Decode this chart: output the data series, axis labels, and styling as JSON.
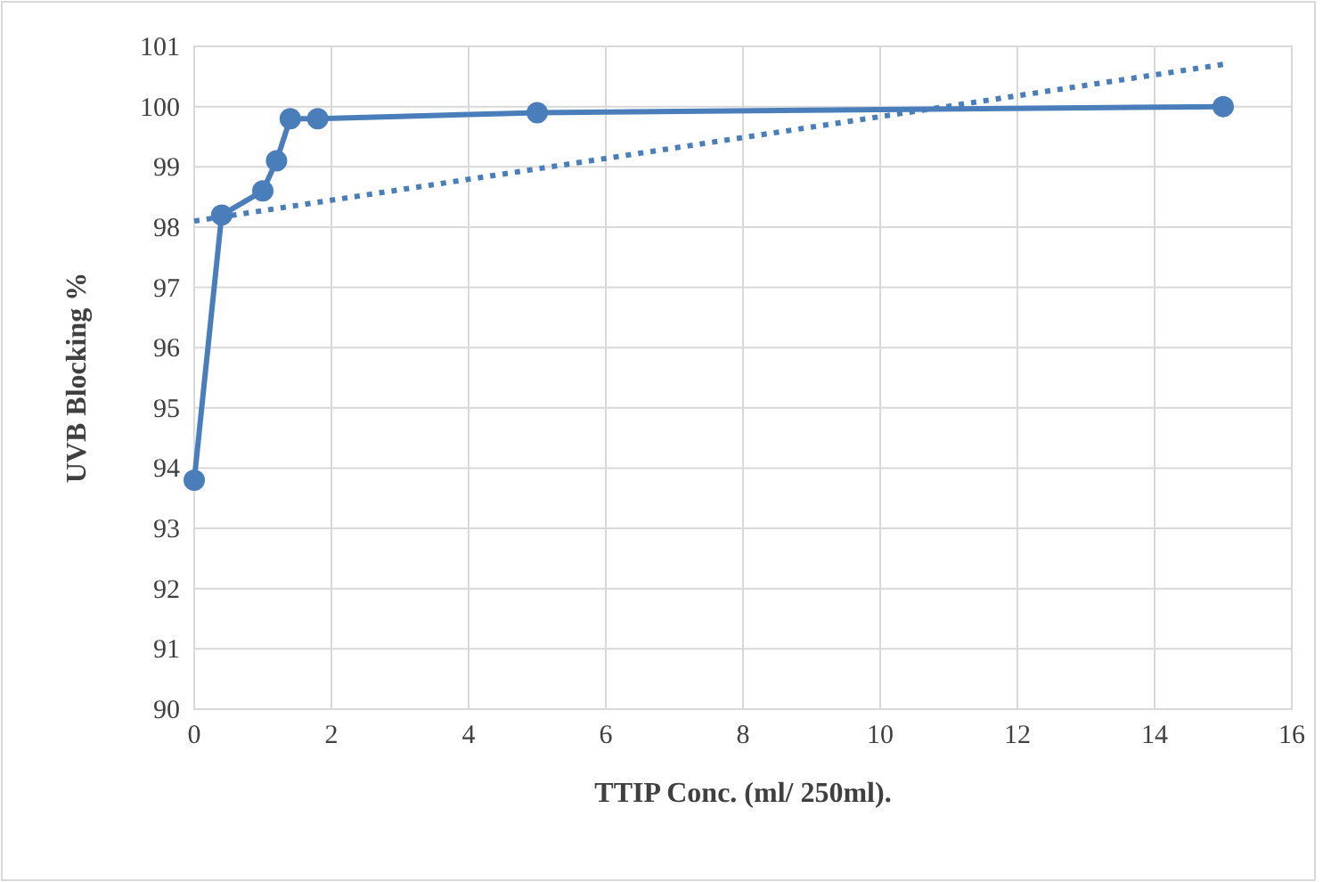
{
  "chart_data": {
    "type": "line",
    "xlabel": "TTIP Conc. (ml/ 250ml).",
    "ylabel": "UVB Blocking %",
    "xlim": [
      0,
      16
    ],
    "xticks": [
      0,
      2,
      4,
      6,
      8,
      10,
      12,
      14,
      16
    ],
    "ylim": [
      90,
      101
    ],
    "yticks": [
      90,
      91,
      92,
      93,
      94,
      95,
      96,
      97,
      98,
      99,
      100,
      101
    ],
    "grid": true,
    "series": [
      {
        "color": "#4a7ebb",
        "x": [
          0,
          0.4,
          1.0,
          1.2,
          1.4,
          1.8,
          5,
          15
        ],
        "values": [
          93.8,
          98.2,
          98.6,
          99.1,
          99.8,
          99.8,
          99.9,
          100
        ],
        "marker": "circle",
        "line_style": "solid"
      },
      {
        "type": "line",
        "color": "#4a7ebb",
        "x": [
          0,
          15
        ],
        "values": [
          98.1,
          100.7
        ],
        "marker": "none",
        "line_style": "dotted"
      }
    ]
  }
}
